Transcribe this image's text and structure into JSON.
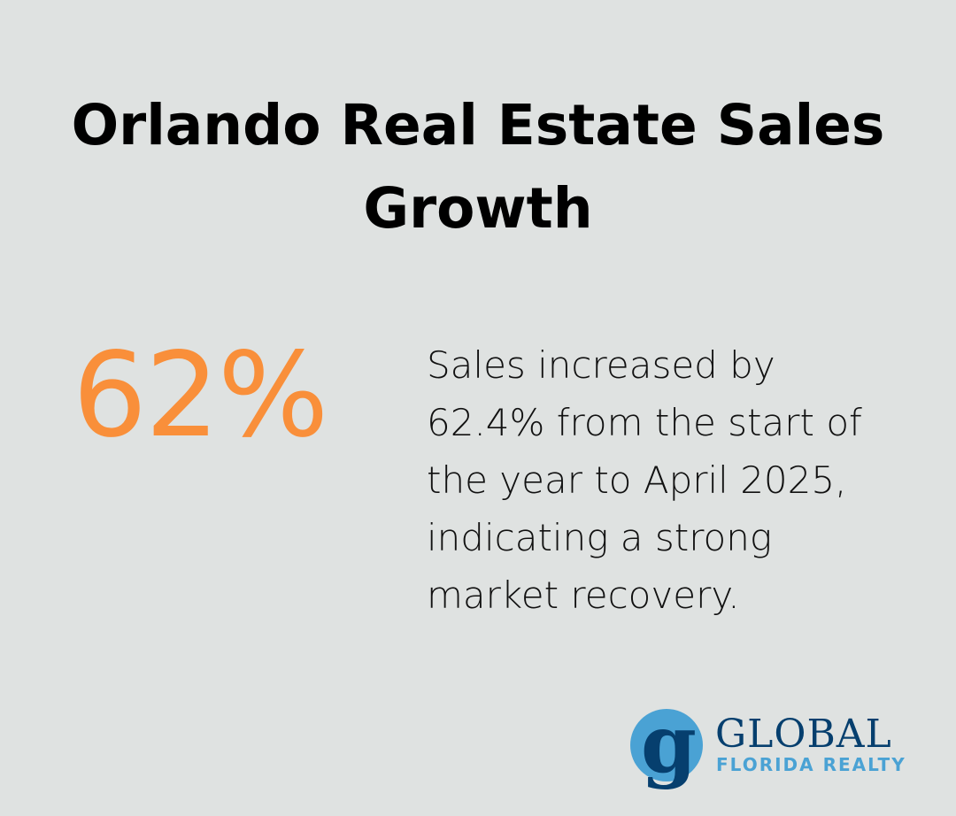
{
  "title": "Orlando Real Estate Sales Growth",
  "stat": "62%",
  "description": "Sales increased by 62.4% from the start of the year to April 2025, indicating a strong market recovery.",
  "logo": {
    "mark": "g",
    "name": "GLOBAL",
    "sub": "FLORIDA REALTY"
  },
  "colors": {
    "accent": "#f98f3a",
    "background": "#dfe2e1",
    "brand_dark": "#063f6e",
    "brand_light": "#4aa2d4"
  }
}
